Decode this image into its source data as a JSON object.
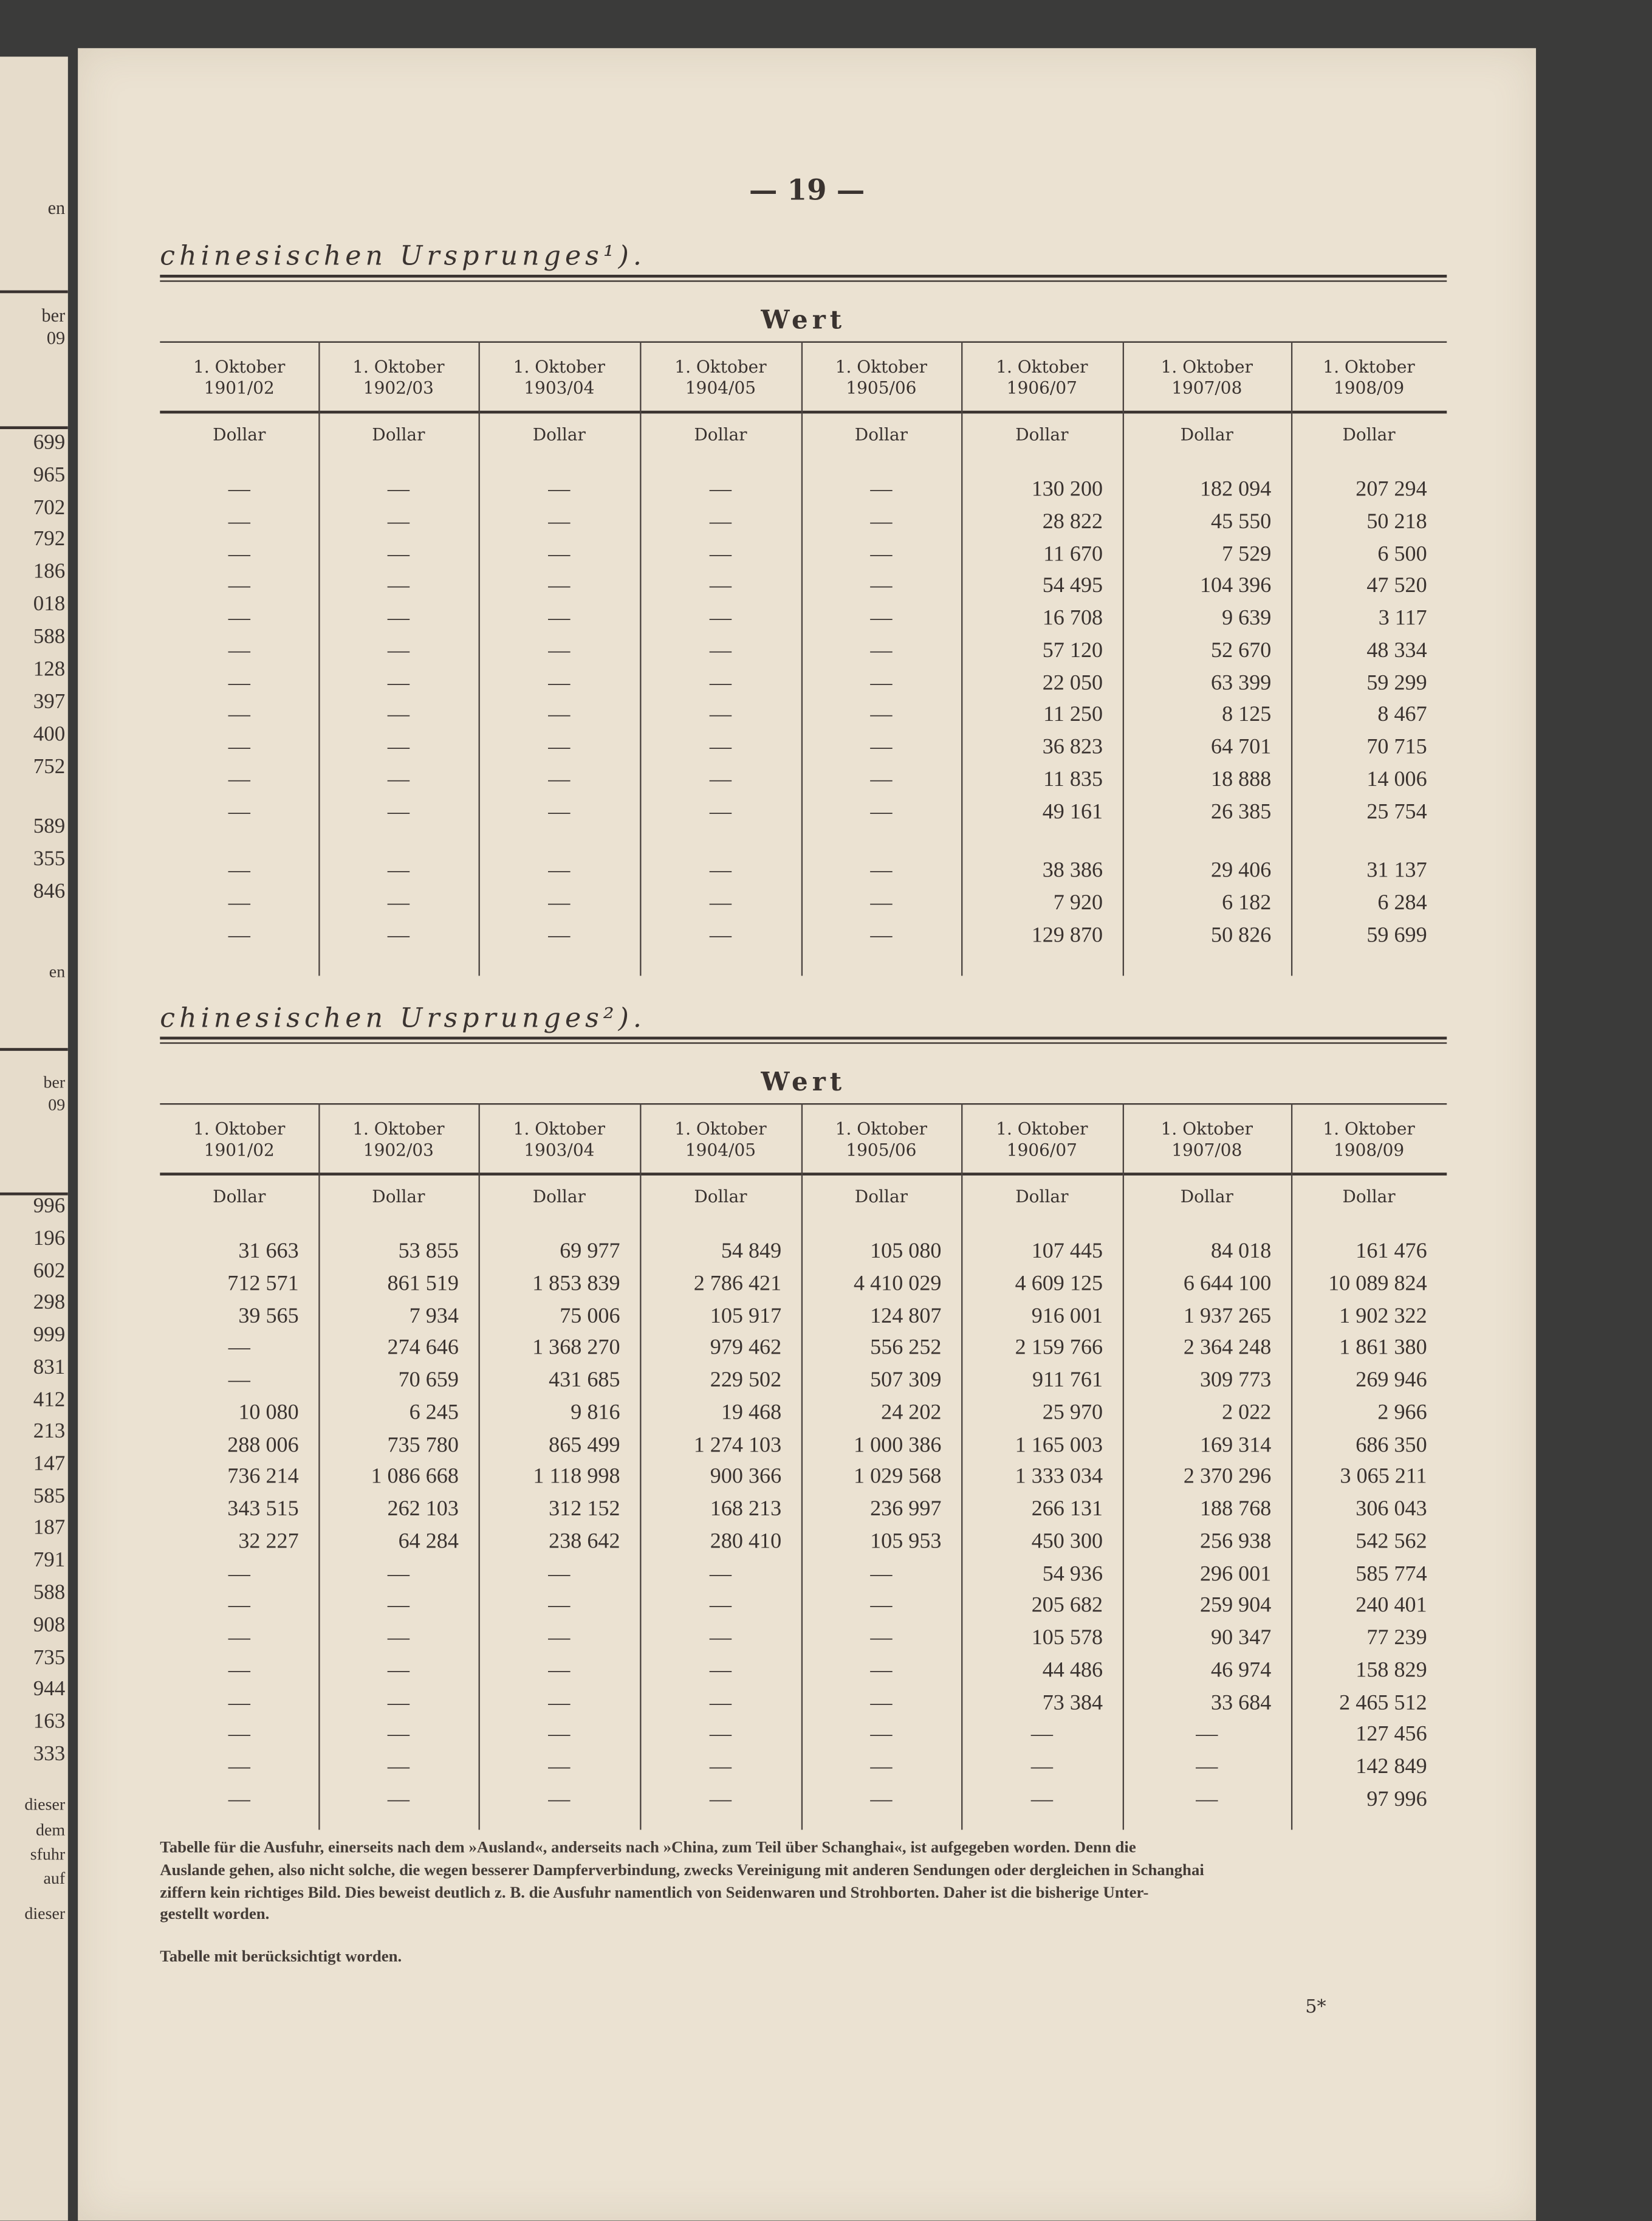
{
  "page_number": "— 19 —",
  "page_footer_mark": "5*",
  "left_page_edge": {
    "fragments_top": [
      "en",
      "ber",
      "09",
      "699",
      "965",
      "702",
      "792",
      "186",
      "018",
      "588",
      "128",
      "397",
      "400",
      "752",
      "589",
      "355",
      "846"
    ],
    "fragments_bottom": [
      "en",
      "ber",
      "09",
      "996",
      "196",
      "602",
      "298",
      "999",
      "831",
      "412",
      "213",
      "147",
      "585",
      "187",
      "791",
      "588",
      "908",
      "735",
      "944",
      "163",
      "333",
      "dieser",
      "dem",
      "sfuhr",
      "auf",
      "dieser"
    ]
  },
  "table1": {
    "heading": "chinesischen Ursprunges¹).",
    "group_header": "Wert",
    "columns": [
      [
        "1. Oktober",
        "1901/02"
      ],
      [
        "1. Oktober",
        "1902/03"
      ],
      [
        "1. Oktober",
        "1903/04"
      ],
      [
        "1. Oktober",
        "1904/05"
      ],
      [
        "1. Oktober",
        "1905/06"
      ],
      [
        "1. Oktober",
        "1906/07"
      ],
      [
        "1. Oktober",
        "1907/08"
      ],
      [
        "1. Oktober",
        "1908/09"
      ]
    ],
    "unit": "Dollar",
    "rows": [
      [
        "—",
        "—",
        "—",
        "—",
        "—",
        "130 200",
        "182 094",
        "207 294"
      ],
      [
        "—",
        "—",
        "—",
        "—",
        "—",
        "28 822",
        "45 550",
        "50 218"
      ],
      [
        "—",
        "—",
        "—",
        "—",
        "—",
        "11 670",
        "7 529",
        "6 500"
      ],
      [
        "—",
        "—",
        "—",
        "—",
        "—",
        "54 495",
        "104 396",
        "47 520"
      ],
      [
        "—",
        "—",
        "—",
        "—",
        "—",
        "16 708",
        "9 639",
        "3 117"
      ],
      [
        "—",
        "—",
        "—",
        "—",
        "—",
        "57 120",
        "52 670",
        "48 334"
      ],
      [
        "—",
        "—",
        "—",
        "—",
        "—",
        "22 050",
        "63 399",
        "59 299"
      ],
      [
        "—",
        "—",
        "—",
        "—",
        "—",
        "11 250",
        "8 125",
        "8 467"
      ],
      [
        "—",
        "—",
        "—",
        "—",
        "—",
        "36 823",
        "64 701",
        "70 715"
      ],
      [
        "—",
        "—",
        "—",
        "—",
        "—",
        "11 835",
        "18 888",
        "14 006"
      ],
      [
        "—",
        "—",
        "—",
        "—",
        "—",
        "49 161",
        "26 385",
        "25 754"
      ],
      [
        "—",
        "—",
        "—",
        "—",
        "—",
        "38 386",
        "29 406",
        "31 137"
      ],
      [
        "—",
        "—",
        "—",
        "—",
        "—",
        "7 920",
        "6 182",
        "6 284"
      ],
      [
        "—",
        "—",
        "—",
        "—",
        "—",
        "129 870",
        "50 826",
        "59 699"
      ]
    ]
  },
  "table2": {
    "heading": "chinesischen Ursprunges²).",
    "group_header": "Wert",
    "columns": [
      [
        "1. Oktober",
        "1901/02"
      ],
      [
        "1. Oktober",
        "1902/03"
      ],
      [
        "1. Oktober",
        "1903/04"
      ],
      [
        "1. Oktober",
        "1904/05"
      ],
      [
        "1. Oktober",
        "1905/06"
      ],
      [
        "1. Oktober",
        "1906/07"
      ],
      [
        "1. Oktober",
        "1907/08"
      ],
      [
        "1. Oktober",
        "1908/09"
      ]
    ],
    "unit": "Dollar",
    "rows": [
      [
        "31 663",
        "53 855",
        "69 977",
        "54 849",
        "105 080",
        "107 445",
        "84 018",
        "161 476"
      ],
      [
        "712 571",
        "861 519",
        "1 853 839",
        "2 786 421",
        "4 410 029",
        "4 609 125",
        "6 644 100",
        "10 089 824"
      ],
      [
        "39 565",
        "7 934",
        "75 006",
        "105 917",
        "124 807",
        "916 001",
        "1 937 265",
        "1 902 322"
      ],
      [
        "—",
        "274 646",
        "1 368 270",
        "979 462",
        "556 252",
        "2 159 766",
        "2 364 248",
        "1 861 380"
      ],
      [
        "—",
        "70 659",
        "431 685",
        "229 502",
        "507 309",
        "911 761",
        "309 773",
        "269 946"
      ],
      [
        "10 080",
        "6 245",
        "9 816",
        "19 468",
        "24 202",
        "25 970",
        "2 022",
        "2 966"
      ],
      [
        "288 006",
        "735 780",
        "865 499",
        "1 274 103",
        "1 000 386",
        "1 165 003",
        "169 314",
        "686 350"
      ],
      [
        "736 214",
        "1 086 668",
        "1 118 998",
        "900 366",
        "1 029 568",
        "1 333 034",
        "2 370 296",
        "3 065 211"
      ],
      [
        "343 515",
        "262 103",
        "312 152",
        "168 213",
        "236 997",
        "266 131",
        "188 768",
        "306 043"
      ],
      [
        "32 227",
        "64 284",
        "238 642",
        "280 410",
        "105 953",
        "450 300",
        "256 938",
        "542 562"
      ],
      [
        "—",
        "—",
        "—",
        "—",
        "—",
        "54 936",
        "296 001",
        "585 774"
      ],
      [
        "—",
        "—",
        "—",
        "—",
        "—",
        "205 682",
        "259 904",
        "240 401"
      ],
      [
        "—",
        "—",
        "—",
        "—",
        "—",
        "105 578",
        "90 347",
        "77 239"
      ],
      [
        "—",
        "—",
        "—",
        "—",
        "—",
        "44 486",
        "46 974",
        "158 829"
      ],
      [
        "—",
        "—",
        "—",
        "—",
        "—",
        "73 384",
        "33 684",
        "2 465 512"
      ],
      [
        "—",
        "—",
        "—",
        "—",
        "—",
        "—",
        "—",
        "127 456"
      ],
      [
        "—",
        "—",
        "—",
        "—",
        "—",
        "—",
        "—",
        "142 849"
      ],
      [
        "—",
        "—",
        "—",
        "—",
        "—",
        "—",
        "—",
        "97 996"
      ]
    ]
  },
  "footnotes": [
    "Tabelle für die Ausfuhr, einerseits nach dem »Ausland«, anderseits nach »China, zum Teil über Schanghai«, ist aufgegeben worden.  Denn die",
    "Auslande gehen, also nicht solche, die wegen besserer Dampferverbindung, zwecks Vereinigung mit anderen Sendungen oder dergleichen in Schanghai",
    "ziffern kein richtiges Bild.  Dies beweist deutlich z. B. die Ausfuhr namentlich von Seidenwaren und Strohborten.  Daher ist die bisherige Unter-",
    "gestellt worden.",
    "Tabelle mit berücksichtigt worden."
  ]
}
